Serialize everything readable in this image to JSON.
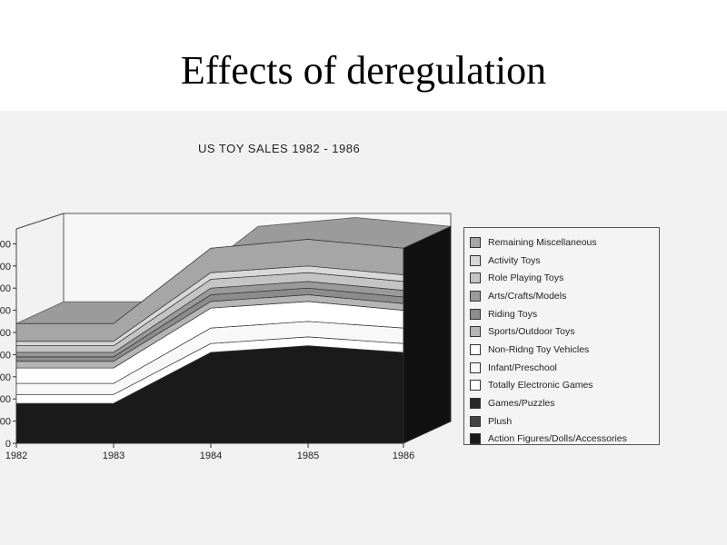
{
  "slide": {
    "title": "Effects of deregulation"
  },
  "chart_data": {
    "type": "area",
    "stacked": true,
    "style": "3d",
    "title": "US TOY SALES 1982 - 1986",
    "xlabel": "",
    "ylabel": "",
    "categories": [
      "1982",
      "1983",
      "1984",
      "1985",
      "1986"
    ],
    "y_tick_labels": [
      "00",
      "00",
      "00",
      "00",
      "00",
      "00",
      "00",
      "00",
      "00",
      "0"
    ],
    "legend_position": "right",
    "grid": false,
    "series": [
      {
        "name": "Action Figures/Dolls/Accessories",
        "color": "#1a1a1a",
        "values": [
          1.8,
          1.8,
          4.1,
          4.4,
          4.1
        ]
      },
      {
        "name": "Plush",
        "color": "#444444",
        "values": [
          0.0,
          0.0,
          0.0,
          0.0,
          0.0
        ]
      },
      {
        "name": "Games/Puzzles",
        "color": "#2a2a2a",
        "values": [
          0.0,
          0.0,
          0.0,
          0.0,
          0.0
        ]
      },
      {
        "name": "Totally Electronic Games",
        "color": "#ffffff",
        "values": [
          0.4,
          0.4,
          0.4,
          0.4,
          0.4
        ]
      },
      {
        "name": "Infant/Preschool",
        "color": "#f8f8f8",
        "values": [
          0.5,
          0.5,
          0.7,
          0.7,
          0.7
        ]
      },
      {
        "name": "Non-Ridng Toy Vehicles",
        "color": "#ffffff",
        "values": [
          0.7,
          0.7,
          0.9,
          0.9,
          0.8
        ]
      },
      {
        "name": "Sports/Outdoor Toys",
        "color": "#b5b5b5",
        "values": [
          0.3,
          0.3,
          0.3,
          0.3,
          0.3
        ]
      },
      {
        "name": "Riding Toys",
        "color": "#8c8c8c",
        "values": [
          0.2,
          0.2,
          0.3,
          0.3,
          0.3
        ]
      },
      {
        "name": "Arts/Crafts/Models",
        "color": "#9a9a9a",
        "values": [
          0.2,
          0.2,
          0.3,
          0.3,
          0.3
        ]
      },
      {
        "name": "Role Playing Toys",
        "color": "#c4c4c4",
        "values": [
          0.3,
          0.3,
          0.4,
          0.4,
          0.4
        ]
      },
      {
        "name": "Activity Toys",
        "color": "#d8d8d8",
        "values": [
          0.2,
          0.2,
          0.3,
          0.3,
          0.3
        ]
      },
      {
        "name": "Remaining Miscellaneous",
        "color": "#a6a6a6",
        "values": [
          0.8,
          0.8,
          1.1,
          1.2,
          1.2
        ]
      }
    ]
  }
}
